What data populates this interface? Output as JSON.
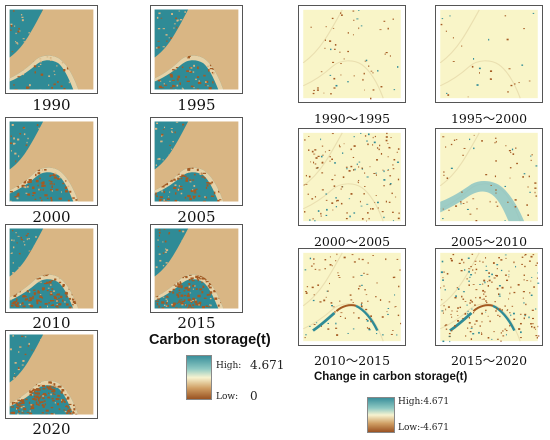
{
  "colors": {
    "land": "#d9b684",
    "teal": "#2f8b96",
    "light_teal": "#8ec6c4",
    "brown": "#a45a22",
    "cream": "#f9f5c8",
    "pale_green": "#dbeec9"
  },
  "stock_maps": [
    {
      "label": "1990"
    },
    {
      "label": "1995"
    },
    {
      "label": "2000"
    },
    {
      "label": "2005"
    },
    {
      "label": "2010"
    },
    {
      "label": "2015"
    },
    {
      "label": "2020"
    }
  ],
  "change_maps": [
    {
      "label": "1990～1995"
    },
    {
      "label": "1995～2000"
    },
    {
      "label": "2000～2005"
    },
    {
      "label": "2005～2010"
    },
    {
      "label": "2010～2015"
    },
    {
      "label": "2015～2020"
    }
  ],
  "legend_stock": {
    "title": "Carbon storage(t)",
    "high_label": "High:",
    "high_value": "4.671",
    "low_label": "Low:",
    "low_value": "0"
  },
  "legend_change": {
    "title": "Change in carbon storage(t)",
    "high_label": "High:4.671",
    "low_label": "Low:-4.671"
  }
}
